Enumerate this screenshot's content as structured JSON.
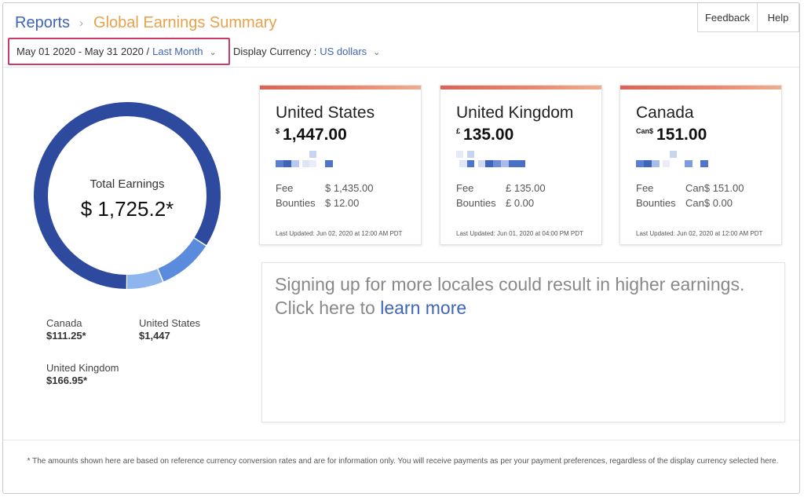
{
  "breadcrumb": {
    "parent": "Reports",
    "separator": "›",
    "current": "Global Earnings Summary"
  },
  "header_buttons": {
    "feedback": "Feedback",
    "help": "Help"
  },
  "date_filter": {
    "range": "May 01 2020 - May 31 2020 /",
    "preset": "Last Month",
    "chevron": "⌄"
  },
  "currency_filter": {
    "label": "Display Currency :",
    "value": "US dollars",
    "chevron": "⌄"
  },
  "total": {
    "label": "Total Earnings",
    "value": "$ 1,725.2*"
  },
  "donut_segments": [
    {
      "name": "United States",
      "share": 0.839,
      "color": "#2d4a9e"
    },
    {
      "name": "United Kingdom",
      "share": 0.097,
      "color": "#5b8bdd"
    },
    {
      "name": "Canada",
      "share": 0.064,
      "color": "#8fb5ef"
    }
  ],
  "legend": [
    {
      "name": "Canada",
      "value": "$111.25*"
    },
    {
      "name": "United States",
      "value": "$1,447"
    },
    {
      "name": "United Kingdom",
      "value": "$166.95*"
    }
  ],
  "cards": [
    {
      "country": "United States",
      "symbol": "$",
      "amount": "1,447.00",
      "fee_label": "Fee",
      "fee_value": "$ 1,435.00",
      "bounties_label": "Bounties",
      "bounties_value": "$ 12.00",
      "updated": "Last Updated: Jun 02, 2020 at 12:00 AM PDT"
    },
    {
      "country": "United Kingdom",
      "symbol": "£",
      "amount": "135.00",
      "fee_label": "Fee",
      "fee_value": "£ 135.00",
      "bounties_label": "Bounties",
      "bounties_value": "£ 0.00",
      "updated": "Last Updated: Jun 01, 2020 at 04:00 PM PDT"
    },
    {
      "country": "Canada",
      "symbol": "Can$",
      "amount": "151.00",
      "fee_label": "Fee",
      "fee_value": "Can$ 151.00",
      "bounties_label": "Bounties",
      "bounties_value": "Can$ 0.00",
      "updated": "Last Updated: Jun 02, 2020 at 12:00 AM PDT"
    }
  ],
  "promo": {
    "text": "Signing up for more locales could result in higher earnings. Click here to",
    "link": "learn more"
  },
  "footnote": "* The amounts shown here are based on reference currency conversion rates and are for information only. You will receive payments as per your payment preferences, regardless of the display currency selected here.",
  "colors": {
    "accent_blue": "#3f65b8",
    "title_orange": "#e8a24c",
    "highlight_border": "#cc3b66",
    "card_bar": "#db6356"
  }
}
